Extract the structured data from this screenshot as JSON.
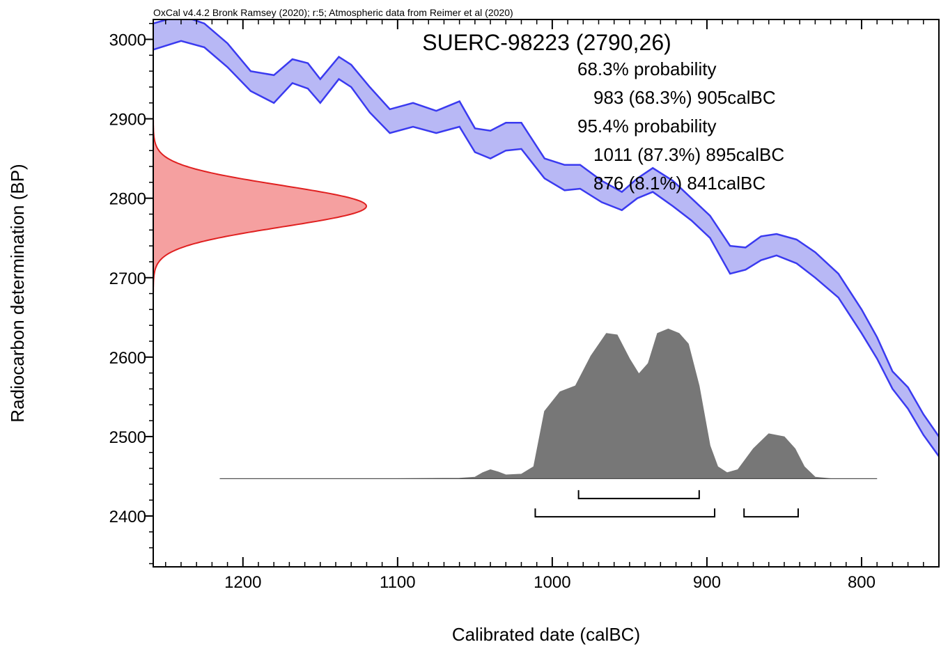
{
  "header": "OxCal v4.4.2 Bronk Ramsey (2020); r:5; Atmospheric data from Reimer et al (2020)",
  "sample_title": "SUERC-98223 (2790,26)",
  "probabilities": [
    "68.3% probability",
    "983 (68.3%) 905calBC",
    "95.4% probability",
    "1011 (87.3%) 895calBC",
    "876 (8.1%) 841calBC"
  ],
  "chart_data": {
    "type": "area",
    "xlabel": "Calibrated date (calBC)",
    "ylabel": "Radiocarbon determination (BP)",
    "xlim": [
      1258,
      750
    ],
    "ylim": [
      2336,
      3025
    ],
    "x_reversed": true,
    "x_ticks": [
      1200,
      1100,
      1000,
      900,
      800
    ],
    "y_ticks": [
      3000,
      2900,
      2800,
      2700,
      2600,
      2500,
      2400
    ],
    "calibration_curve": {
      "color": "#3a3af0",
      "fill": "#b8b8f5",
      "points": [
        [
          1258,
          3020,
          2987
        ],
        [
          1240,
          3030,
          2998
        ],
        [
          1225,
          3020,
          2990
        ],
        [
          1210,
          2995,
          2965
        ],
        [
          1195,
          2960,
          2935
        ],
        [
          1180,
          2955,
          2920
        ],
        [
          1168,
          2975,
          2945
        ],
        [
          1158,
          2970,
          2938
        ],
        [
          1150,
          2950,
          2920
        ],
        [
          1138,
          2978,
          2950
        ],
        [
          1130,
          2968,
          2940
        ],
        [
          1118,
          2940,
          2908
        ],
        [
          1105,
          2912,
          2882
        ],
        [
          1090,
          2920,
          2890
        ],
        [
          1075,
          2910,
          2882
        ],
        [
          1060,
          2922,
          2890
        ],
        [
          1050,
          2888,
          2858
        ],
        [
          1040,
          2885,
          2850
        ],
        [
          1030,
          2895,
          2860
        ],
        [
          1020,
          2895,
          2862
        ],
        [
          1005,
          2850,
          2825
        ],
        [
          992,
          2842,
          2810
        ],
        [
          982,
          2842,
          2812
        ],
        [
          968,
          2822,
          2795
        ],
        [
          955,
          2808,
          2785
        ],
        [
          945,
          2825,
          2800
        ],
        [
          935,
          2838,
          2808
        ],
        [
          922,
          2822,
          2790
        ],
        [
          910,
          2800,
          2772
        ],
        [
          898,
          2778,
          2750
        ],
        [
          885,
          2740,
          2705
        ],
        [
          875,
          2738,
          2710
        ],
        [
          865,
          2752,
          2722
        ],
        [
          855,
          2755,
          2728
        ],
        [
          842,
          2748,
          2718
        ],
        [
          830,
          2732,
          2700
        ],
        [
          815,
          2705,
          2675
        ],
        [
          800,
          2660,
          2630
        ],
        [
          790,
          2625,
          2598
        ],
        [
          780,
          2582,
          2560
        ],
        [
          770,
          2562,
          2535
        ],
        [
          760,
          2528,
          2502
        ],
        [
          750,
          2500,
          2475
        ]
      ]
    },
    "measurement": {
      "mean": 2790,
      "error": 26,
      "color": "#e02020",
      "fill": "#f5a0a0"
    },
    "posterior_distribution": {
      "color": "#777777",
      "baseline_y": 2447,
      "peak_height": 215,
      "points": [
        [
          1215,
          0
        ],
        [
          1100,
          0
        ],
        [
          1060,
          0.003
        ],
        [
          1050,
          0.01
        ],
        [
          1045,
          0.04
        ],
        [
          1040,
          0.06
        ],
        [
          1035,
          0.045
        ],
        [
          1030,
          0.025
        ],
        [
          1020,
          0.03
        ],
        [
          1012,
          0.08
        ],
        [
          1005,
          0.45
        ],
        [
          995,
          0.58
        ],
        [
          985,
          0.62
        ],
        [
          975,
          0.82
        ],
        [
          965,
          0.97
        ],
        [
          958,
          0.96
        ],
        [
          950,
          0.8
        ],
        [
          944,
          0.7
        ],
        [
          938,
          0.77
        ],
        [
          932,
          0.97
        ],
        [
          925,
          1.0
        ],
        [
          918,
          0.97
        ],
        [
          912,
          0.9
        ],
        [
          905,
          0.62
        ],
        [
          898,
          0.22
        ],
        [
          893,
          0.08
        ],
        [
          887,
          0.04
        ],
        [
          880,
          0.06
        ],
        [
          870,
          0.2
        ],
        [
          860,
          0.3
        ],
        [
          850,
          0.28
        ],
        [
          843,
          0.2
        ],
        [
          837,
          0.08
        ],
        [
          830,
          0.01
        ],
        [
          820,
          0
        ],
        [
          790,
          0
        ]
      ]
    },
    "ranges": [
      {
        "level": "68.3%",
        "from": 983,
        "to": 905,
        "bp": 2422
      },
      {
        "level": "95.4%",
        "from": 1011,
        "to": 895,
        "bp": 2399
      },
      {
        "level": "95.4%",
        "from": 876,
        "to": 841,
        "bp": 2399
      }
    ]
  }
}
